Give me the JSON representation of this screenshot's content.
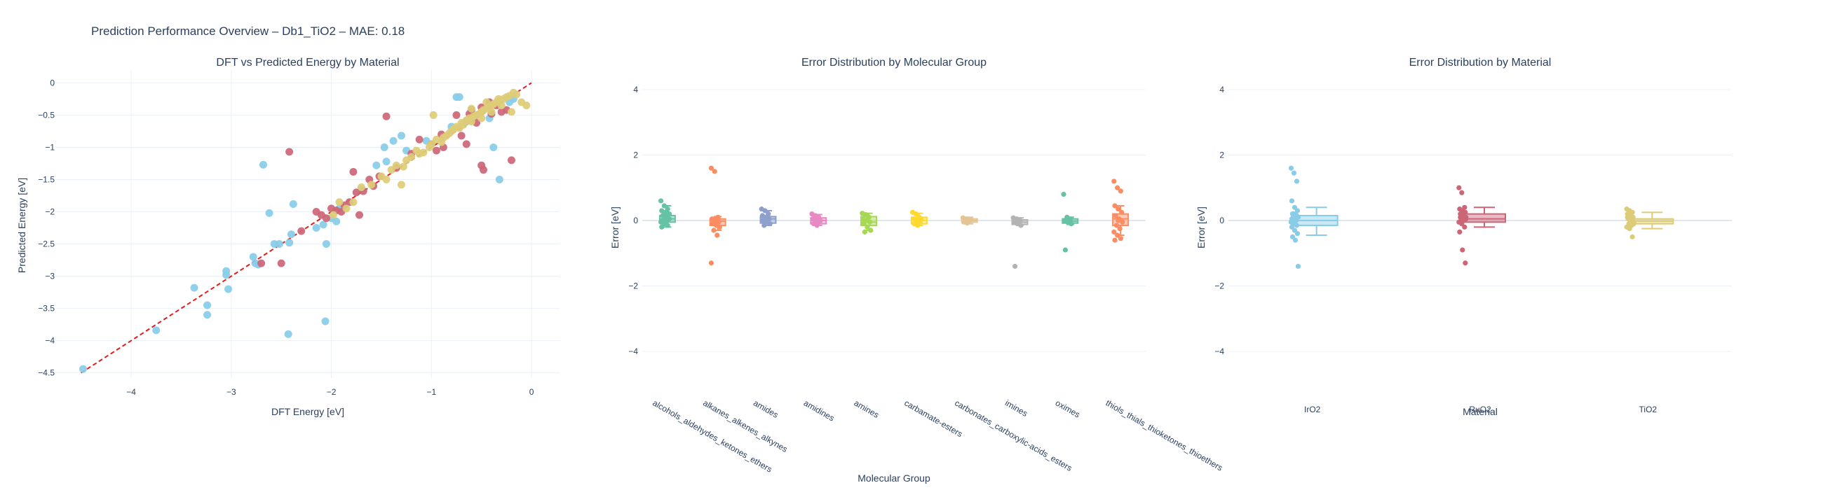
{
  "figure": {
    "title": "Prediction Performance Overview – Db1_TiO2 – MAE: 0.18"
  },
  "chart_data": [
    {
      "type": "scatter",
      "title": "DFT vs Predicted Energy by Material",
      "xlabel": "DFT Energy [eV]",
      "ylabel": "Predicted Energy [eV]",
      "xlim": [
        -4.75,
        0.28
      ],
      "ylim": [
        -4.58,
        0.2
      ],
      "xticks": [
        -4,
        -3,
        -2,
        -1,
        0
      ],
      "yticks": [
        0,
        -0.5,
        -1,
        -1.5,
        -2,
        -2.5,
        -3,
        -3.5,
        -4,
        -4.5
      ],
      "grid": true,
      "parity_line": {
        "from": [
          -4.5,
          -4.5
        ],
        "to": [
          0,
          0
        ],
        "color": "#e41a1c",
        "style": "dashed"
      },
      "series": [
        {
          "name": "IrO2",
          "color": "#88cce8",
          "points": [
            [
              -4.48,
              -4.44
            ],
            [
              -3.75,
              -3.84
            ],
            [
              -3.37,
              -3.18
            ],
            [
              -3.24,
              -3.45
            ],
            [
              -3.24,
              -3.6
            ],
            [
              -3.05,
              -2.92
            ],
            [
              -3.05,
              -2.98
            ],
            [
              -3.03,
              -3.2
            ],
            [
              -2.78,
              -2.7
            ],
            [
              -2.76,
              -2.8
            ],
            [
              -2.73,
              -2.82
            ],
            [
              -2.68,
              -1.27
            ],
            [
              -2.62,
              -2.02
            ],
            [
              -2.57,
              -2.5
            ],
            [
              -2.52,
              -2.5
            ],
            [
              -2.43,
              -3.9
            ],
            [
              -2.42,
              -2.48
            ],
            [
              -2.4,
              -2.35
            ],
            [
              -2.38,
              -1.88
            ],
            [
              -2.15,
              -2.25
            ],
            [
              -2.08,
              -2.2
            ],
            [
              -2.06,
              -3.7
            ],
            [
              -2.05,
              -2.5
            ],
            [
              -2.0,
              -2.1
            ],
            [
              -1.95,
              -2.15
            ],
            [
              -1.92,
              -1.95
            ],
            [
              -1.7,
              -1.65
            ],
            [
              -1.55,
              -1.28
            ],
            [
              -1.47,
              -1.0
            ],
            [
              -1.45,
              -1.22
            ],
            [
              -1.38,
              -0.9
            ],
            [
              -1.3,
              -0.82
            ],
            [
              -1.25,
              -1.05
            ],
            [
              -1.05,
              -0.9
            ],
            [
              -0.8,
              -0.68
            ],
            [
              -0.75,
              -0.22
            ],
            [
              -0.72,
              -0.22
            ],
            [
              -0.65,
              -0.6
            ],
            [
              -0.42,
              -0.55
            ],
            [
              -0.38,
              -1.0
            ],
            [
              -0.32,
              -1.5
            ],
            [
              -0.22,
              -0.3
            ],
            [
              -0.18,
              -0.25
            ]
          ]
        },
        {
          "name": "RuO2",
          "color": "#cc6677",
          "points": [
            [
              -2.7,
              -2.8
            ],
            [
              -2.5,
              -2.8
            ],
            [
              -2.42,
              -1.07
            ],
            [
              -2.3,
              -2.3
            ],
            [
              -2.15,
              -2.0
            ],
            [
              -2.1,
              -2.05
            ],
            [
              -2.05,
              -2.1
            ],
            [
              -2.0,
              -1.95
            ],
            [
              -1.95,
              -1.98
            ],
            [
              -1.9,
              -2.0
            ],
            [
              -1.87,
              -1.9
            ],
            [
              -1.82,
              -1.85
            ],
            [
              -1.78,
              -1.38
            ],
            [
              -1.75,
              -1.7
            ],
            [
              -1.72,
              -2.05
            ],
            [
              -1.68,
              -1.68
            ],
            [
              -1.62,
              -1.5
            ],
            [
              -1.58,
              -1.6
            ],
            [
              -1.52,
              -1.45
            ],
            [
              -1.45,
              -0.52
            ],
            [
              -1.35,
              -1.32
            ],
            [
              -1.2,
              -1.1
            ],
            [
              -1.12,
              -0.88
            ],
            [
              -1.0,
              -0.95
            ],
            [
              -0.95,
              -1.05
            ],
            [
              -0.9,
              -0.8
            ],
            [
              -0.88,
              -1.0
            ],
            [
              -0.75,
              -0.5
            ],
            [
              -0.7,
              -0.82
            ],
            [
              -0.65,
              -0.95
            ],
            [
              -0.62,
              -0.48
            ],
            [
              -0.6,
              -0.42
            ],
            [
              -0.55,
              -0.62
            ],
            [
              -0.5,
              -0.38
            ],
            [
              -0.5,
              -1.28
            ],
            [
              -0.48,
              -1.35
            ],
            [
              -0.42,
              -0.3
            ],
            [
              -0.4,
              -0.48
            ],
            [
              -0.35,
              -0.35
            ],
            [
              -0.3,
              -0.45
            ],
            [
              -0.25,
              -0.42
            ],
            [
              -0.2,
              -1.2
            ]
          ]
        },
        {
          "name": "TiO2",
          "color": "#ddcc77",
          "points": [
            [
              -1.98,
              -2.05
            ],
            [
              -1.92,
              -1.85
            ],
            [
              -1.85,
              -1.95
            ],
            [
              -1.78,
              -1.85
            ],
            [
              -1.7,
              -1.62
            ],
            [
              -1.6,
              -1.58
            ],
            [
              -1.5,
              -1.45
            ],
            [
              -1.45,
              -1.5
            ],
            [
              -1.4,
              -1.35
            ],
            [
              -1.35,
              -1.28
            ],
            [
              -1.3,
              -1.58
            ],
            [
              -1.28,
              -1.3
            ],
            [
              -1.25,
              -1.2
            ],
            [
              -1.2,
              -1.15
            ],
            [
              -1.15,
              -1.05
            ],
            [
              -1.12,
              -1.1
            ],
            [
              -1.08,
              -1.08
            ],
            [
              -1.02,
              -1.0
            ],
            [
              -1.0,
              -0.95
            ],
            [
              -0.98,
              -0.5
            ],
            [
              -0.95,
              -0.88
            ],
            [
              -0.9,
              -0.92
            ],
            [
              -0.88,
              -0.85
            ],
            [
              -0.85,
              -0.82
            ],
            [
              -0.82,
              -0.78
            ],
            [
              -0.8,
              -0.75
            ],
            [
              -0.78,
              -0.72
            ],
            [
              -0.75,
              -0.68
            ],
            [
              -0.72,
              -0.7
            ],
            [
              -0.7,
              -0.62
            ],
            [
              -0.68,
              -0.65
            ],
            [
              -0.65,
              -0.58
            ],
            [
              -0.62,
              -0.55
            ],
            [
              -0.6,
              -0.6
            ],
            [
              -0.58,
              -0.52
            ],
            [
              -0.55,
              -0.5
            ],
            [
              -0.52,
              -0.48
            ],
            [
              -0.5,
              -0.45
            ],
            [
              -0.48,
              -0.42
            ],
            [
              -0.45,
              -0.4
            ],
            [
              -0.42,
              -0.38
            ],
            [
              -0.4,
              -0.35
            ],
            [
              -0.38,
              -0.33
            ],
            [
              -0.35,
              -0.3
            ],
            [
              -0.32,
              -0.28
            ],
            [
              -0.3,
              -0.35
            ],
            [
              -0.28,
              -0.25
            ],
            [
              -0.25,
              -0.22
            ],
            [
              -0.22,
              -0.2
            ],
            [
              -0.2,
              -0.45
            ],
            [
              -0.18,
              -0.15
            ],
            [
              -0.15,
              -0.18
            ],
            [
              -0.1,
              -0.3
            ],
            [
              -0.05,
              -0.35
            ],
            [
              -0.6,
              -0.4
            ],
            [
              -0.5,
              -0.55
            ],
            [
              -0.45,
              -0.3
            ],
            [
              -0.4,
              -0.45
            ],
            [
              -0.33,
              -0.25
            ]
          ]
        }
      ]
    },
    {
      "type": "box",
      "title": "Error Distribution by Molecular Group",
      "xlabel": "Molecular Group",
      "ylabel": "Error [eV]",
      "ylim": [
        -4.6,
        4.6
      ],
      "yticks": [
        4,
        2,
        0,
        -2,
        -4
      ],
      "grid": true,
      "categories": [
        "alcohols_aldehydes_ketones_ethers",
        "alkanes_alkenes_alkynes",
        "amides",
        "amidines",
        "amines",
        "carbamate-esters",
        "carbonates_carboxylic-acids_esters",
        "imines",
        "oximes",
        "thiols_thials_thioketones_thioethers"
      ],
      "colors": [
        "#66c2a5",
        "#fc8d62",
        "#8da0cb",
        "#e78ac3",
        "#a6d854",
        "#ffd92f",
        "#e5c494",
        "#b3b3b3",
        "#66c2a5",
        "#fc8d62"
      ],
      "boxes": [
        {
          "q1": -0.05,
          "median": 0.05,
          "q3": 0.15,
          "lo": -0.2,
          "hi": 0.45
        },
        {
          "q1": -0.15,
          "median": -0.02,
          "q3": 0.05,
          "lo": -0.3,
          "hi": 0.12
        },
        {
          "q1": -0.08,
          "median": 0.05,
          "q3": 0.12,
          "lo": -0.15,
          "hi": 0.3
        },
        {
          "q1": -0.1,
          "median": 0.0,
          "q3": 0.08,
          "lo": -0.15,
          "hi": 0.18
        },
        {
          "q1": -0.15,
          "median": -0.05,
          "q3": 0.12,
          "lo": -0.3,
          "hi": 0.22
        },
        {
          "q1": -0.1,
          "median": 0.0,
          "q3": 0.1,
          "lo": -0.15,
          "hi": 0.22
        },
        {
          "q1": -0.05,
          "median": 0.0,
          "q3": 0.05,
          "lo": -0.1,
          "hi": 0.1
        },
        {
          "q1": -0.12,
          "median": -0.05,
          "q3": 0.02,
          "lo": -0.15,
          "hi": 0.08
        },
        {
          "q1": -0.08,
          "median": -0.02,
          "q3": 0.05,
          "lo": -0.12,
          "hi": 0.1
        },
        {
          "q1": -0.15,
          "median": 0.05,
          "q3": 0.2,
          "lo": -0.45,
          "hi": 0.45
        }
      ],
      "points": [
        [
          0.6,
          0.45,
          0.35,
          0.3,
          0.25,
          0.2,
          0.15,
          0.1,
          0.05,
          0.0,
          0.0,
          -0.05,
          -0.1,
          -0.15,
          -0.2,
          0.1,
          0.05,
          -0.05,
          0.15,
          0.2
        ],
        [
          1.6,
          1.5,
          0.1,
          0.05,
          0.0,
          -0.05,
          -0.1,
          -0.15,
          -0.2,
          -0.3,
          -0.45,
          -1.3,
          0.05,
          0.0
        ],
        [
          0.35,
          0.3,
          0.2,
          0.15,
          0.1,
          0.05,
          0.0,
          -0.05,
          -0.1,
          -0.15,
          0.1
        ],
        [
          0.2,
          0.15,
          0.1,
          0.05,
          0.0,
          -0.05,
          -0.1,
          -0.15,
          0.0
        ],
        [
          0.22,
          0.18,
          0.1,
          0.05,
          0.0,
          -0.05,
          -0.1,
          -0.2,
          -0.3,
          -0.35,
          0.12
        ],
        [
          0.25,
          0.2,
          0.1,
          0.05,
          0.0,
          -0.05,
          -0.1,
          -0.15,
          0.05
        ],
        [
          0.08,
          0.05,
          0.0,
          -0.05,
          -0.08,
          0.02
        ],
        [
          0.08,
          0.05,
          0.0,
          -0.05,
          -0.1,
          -0.15,
          -1.4,
          -0.02
        ],
        [
          0.8,
          0.1,
          0.05,
          0.0,
          -0.05,
          -0.1,
          -0.9
        ],
        [
          1.2,
          1.0,
          0.9,
          0.45,
          0.35,
          0.25,
          0.15,
          0.05,
          -0.05,
          -0.15,
          -0.25,
          -0.35,
          -0.45,
          -0.55,
          -0.6,
          0.0
        ]
      ]
    },
    {
      "type": "box",
      "title": "Error Distribution by Material",
      "xlabel": "Material",
      "ylabel": "Error [eV]",
      "ylim": [
        -4.6,
        4.6
      ],
      "yticks": [
        4,
        2,
        0,
        -2,
        -4
      ],
      "grid": true,
      "categories": [
        "IrO2",
        "RuO2",
        "TiO2"
      ],
      "colors": [
        "#88cce8",
        "#cc6677",
        "#ddcc77"
      ],
      "boxes": [
        {
          "q1": -0.15,
          "median": 0.0,
          "q3": 0.15,
          "lo": -0.45,
          "hi": 0.4
        },
        {
          "q1": -0.05,
          "median": 0.05,
          "q3": 0.2,
          "lo": -0.2,
          "hi": 0.4
        },
        {
          "q1": -0.1,
          "median": -0.02,
          "q3": 0.05,
          "lo": -0.25,
          "hi": 0.25
        }
      ],
      "points": [
        [
          1.6,
          1.45,
          1.2,
          0.6,
          0.4,
          0.3,
          0.2,
          0.15,
          0.1,
          0.05,
          0.0,
          -0.05,
          -0.1,
          -0.15,
          -0.2,
          -0.3,
          -0.4,
          -0.5,
          -0.6,
          -1.4,
          0.1,
          0.0,
          -0.05,
          0.2,
          0.15,
          0.05
        ],
        [
          1.0,
          0.85,
          0.4,
          0.35,
          0.3,
          0.25,
          0.2,
          0.15,
          0.1,
          0.05,
          0.0,
          -0.05,
          -0.1,
          -0.2,
          -0.35,
          -0.9,
          -1.3,
          0.1,
          0.0,
          0.05,
          0.2
        ],
        [
          0.35,
          0.3,
          0.25,
          0.2,
          0.15,
          0.1,
          0.05,
          0.0,
          -0.05,
          -0.1,
          -0.15,
          -0.2,
          -0.25,
          -0.5,
          0.1,
          0.0,
          -0.05,
          0.05,
          0.15,
          -0.1
        ]
      ]
    }
  ]
}
